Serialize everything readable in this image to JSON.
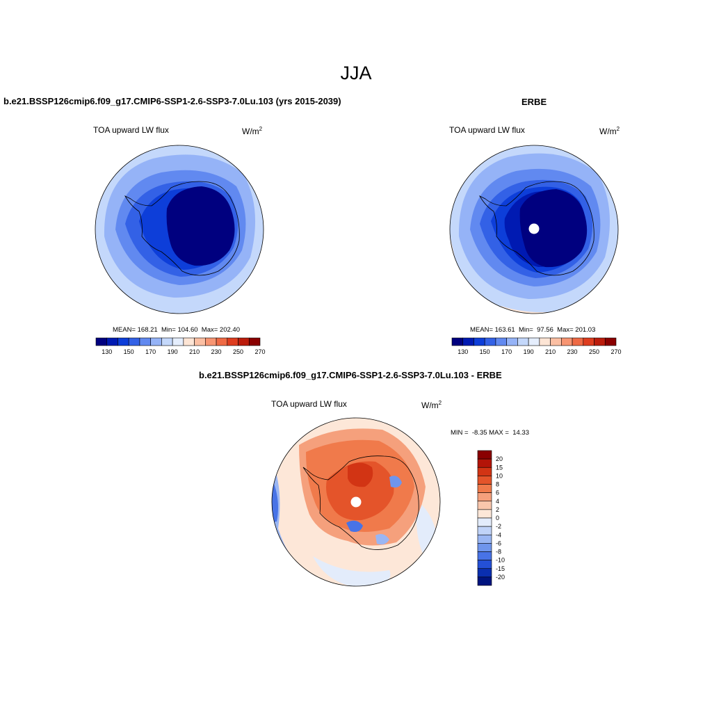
{
  "title": "JJA",
  "panels": [
    {
      "id": "model",
      "title": "b.e21.BSSP126cmip6.f09_g17.CMIP6-SSP1-2.6-SSP3-7.0Lu.103 (yrs 2015-2039)",
      "variable": "TOA upward LW flux",
      "units_base": "W/m",
      "units_exp": "2",
      "stats": "MEAN= 168.21  Min= 104.60  Max= 202.40",
      "colorbar_labels": [
        "130",
        "150",
        "170",
        "190",
        "210",
        "230",
        "250",
        "270"
      ]
    },
    {
      "id": "obs",
      "title": "ERBE",
      "variable": "TOA upward LW flux",
      "units_base": "W/m",
      "units_exp": "2",
      "stats": "MEAN= 163.61  Min=  97.56  Max= 201.03",
      "colorbar_labels": [
        "130",
        "150",
        "170",
        "190",
        "210",
        "230",
        "250",
        "270"
      ]
    },
    {
      "id": "diff",
      "title": "b.e21.BSSP126cmip6.f09_g17.CMIP6-SSP1-2.6-SSP3-7.0Lu.103 - ERBE",
      "variable": "TOA upward LW flux",
      "units_base": "W/m",
      "units_exp": "2",
      "stats": "MIN =  -8.35 MAX =  14.33",
      "colorbar_labels": [
        "20",
        "15",
        "10",
        "8",
        "6",
        "4",
        "2",
        "0",
        "-2",
        "-4",
        "-6",
        "-8",
        "-10",
        "-15",
        "-20"
      ]
    }
  ],
  "colors": {
    "abs_scale": [
      "#00007f",
      "#001ab2",
      "#0d3ed9",
      "#3361e6",
      "#6189f0",
      "#95b3f7",
      "#c4d8fb",
      "#e5eefd",
      "#fde5d5",
      "#fbbfa3",
      "#f79572",
      "#ef6a45",
      "#de3d1f",
      "#bb1c0c",
      "#8a0000"
    ],
    "diff_scale": [
      "#8a0000",
      "#b31408",
      "#d23414",
      "#e4542a",
      "#f07a4b",
      "#f5a07c",
      "#f9c6ac",
      "#fde7d8",
      "#e3ecfb",
      "#c0d3f8",
      "#9ab6f3",
      "#6f95ec",
      "#4873e6",
      "#2450d6",
      "#0a2fb0",
      "#00147f"
    ]
  }
}
